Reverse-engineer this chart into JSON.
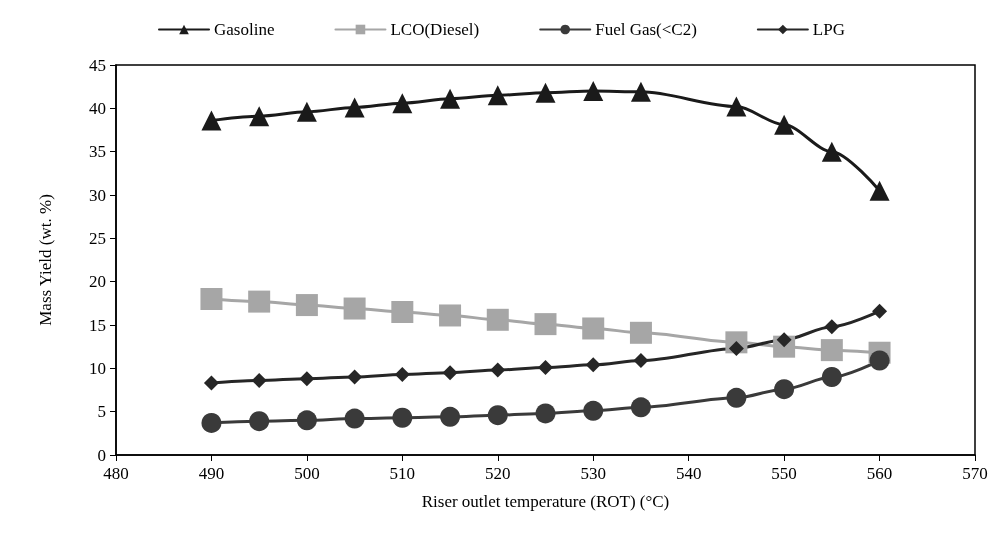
{
  "chart_data": {
    "type": "line",
    "xlabel": "Riser outlet temperature (ROT) (°C)",
    "ylabel": "Mass Yield (wt. %)",
    "x": [
      490,
      495,
      500,
      505,
      510,
      515,
      520,
      525,
      530,
      535,
      545,
      550,
      555,
      560
    ],
    "series": [
      {
        "name": "Gasoline",
        "color": "#1a1a1a",
        "marker": "triangle",
        "values": [
          38.6,
          39.1,
          39.6,
          40.1,
          40.6,
          41.1,
          41.5,
          41.8,
          42.0,
          41.9,
          40.2,
          38.1,
          35.0,
          30.5
        ]
      },
      {
        "name": "LCO(Diesel)",
        "color": "#a6a6a6",
        "marker": "square",
        "values": [
          18.0,
          17.7,
          17.3,
          16.9,
          16.5,
          16.1,
          15.6,
          15.1,
          14.6,
          14.1,
          13.0,
          12.5,
          12.1,
          11.8
        ]
      },
      {
        "name": "Fuel Gas(<C2)",
        "color": "#3a3a3a",
        "marker": "circle",
        "values": [
          3.7,
          3.9,
          4.0,
          4.2,
          4.3,
          4.4,
          4.6,
          4.8,
          5.1,
          5.5,
          6.6,
          7.6,
          9.0,
          10.9
        ]
      },
      {
        "name": "LPG",
        "color": "#262626",
        "marker": "diamond",
        "values": [
          8.3,
          8.6,
          8.8,
          9.0,
          9.3,
          9.5,
          9.8,
          10.1,
          10.4,
          10.9,
          12.3,
          13.3,
          14.8,
          16.6
        ]
      }
    ],
    "xlim": [
      480,
      570
    ],
    "xticks": [
      480,
      490,
      500,
      510,
      520,
      530,
      540,
      550,
      560,
      570
    ],
    "ylim": [
      0,
      45
    ],
    "yticks": [
      0,
      5,
      10,
      15,
      20,
      25,
      30,
      35,
      40,
      45
    ],
    "grid": false,
    "legend": "top"
  }
}
